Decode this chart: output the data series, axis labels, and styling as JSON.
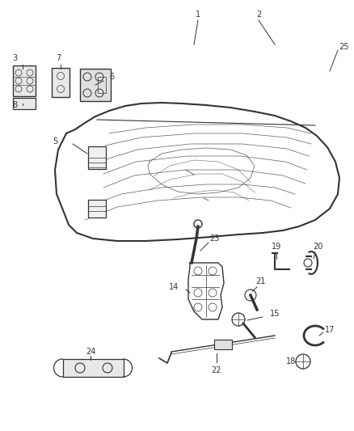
{
  "background_color": "#ffffff",
  "line_color": "#333333",
  "label_color": "#333333",
  "label_fontsize": 7,
  "fig_width": 4.38,
  "fig_height": 5.33,
  "dpi": 100
}
